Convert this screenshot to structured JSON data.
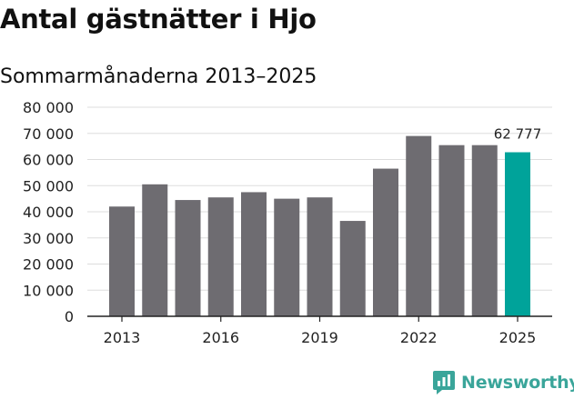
{
  "header": {
    "title": "Antal gästnätter i Hjo",
    "subtitle": "Sommarmånaderna 2013–2025"
  },
  "brand": {
    "name": "Newsworthy",
    "color": "#3aa59a",
    "icon": "newsworthy-chat-bubble-chart-icon"
  },
  "chart_data": {
    "type": "bar",
    "title": "Antal gästnätter i Hjo",
    "subtitle": "Sommarmånaderna 2013–2025",
    "xlabel": "",
    "ylabel": "",
    "categories": [
      "2013",
      "2014",
      "2015",
      "2016",
      "2017",
      "2018",
      "2019",
      "2020",
      "2021",
      "2022",
      "2023",
      "2024",
      "2025"
    ],
    "values": [
      42000,
      50500,
      44500,
      45500,
      47500,
      45000,
      45500,
      36500,
      56500,
      69000,
      65500,
      65500,
      62777
    ],
    "ylim": [
      0,
      80000
    ],
    "y_ticks": [
      0,
      10000,
      20000,
      30000,
      40000,
      50000,
      60000,
      70000,
      80000
    ],
    "y_tick_labels": [
      "0",
      "10 000",
      "20 000",
      "30 000",
      "40 000",
      "50 000",
      "60 000",
      "70 000",
      "80 000"
    ],
    "x_tick_labels": [
      "2013",
      "2016",
      "2019",
      "2022",
      "2025"
    ],
    "x_tick_years": [
      "2013",
      "2016",
      "2019",
      "2022",
      "2025"
    ],
    "grid": true,
    "colors": {
      "bar": "#6e6c71",
      "highlight": "#00a39a",
      "grid": "#dddddd",
      "axis": "#222222"
    },
    "highlight_index": 12,
    "annotations": [
      {
        "index": 12,
        "text": "62 777"
      }
    ]
  }
}
